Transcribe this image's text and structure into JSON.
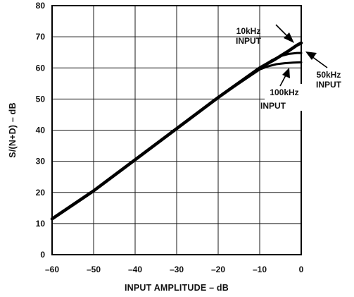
{
  "chart_data": {
    "type": "line",
    "title": "",
    "xlabel": "INPUT AMPLITUDE – dB",
    "ylabel": "S/(N+D) – dB",
    "xlim": [
      -60,
      0
    ],
    "ylim": [
      0,
      80
    ],
    "x_ticks": [
      "–60",
      "–50",
      "–40",
      "–30",
      "–20",
      "–10",
      "0"
    ],
    "y_ticks": [
      "0",
      "10",
      "20",
      "30",
      "40",
      "50",
      "60",
      "70",
      "80"
    ],
    "grid": true,
    "series": [
      {
        "name": "10kHz INPUT",
        "x": [
          -60,
          -50,
          -40,
          -30,
          -20,
          -10,
          -6,
          -3,
          -1,
          0
        ],
        "y": [
          11.5,
          20.5,
          30.5,
          40.5,
          50.5,
          60,
          63,
          65.5,
          67.3,
          68
        ]
      },
      {
        "name": "50kHz INPUT",
        "x": [
          -60,
          -50,
          -40,
          -30,
          -20,
          -10,
          -7,
          -5,
          -3,
          -1,
          0
        ],
        "y": [
          11.5,
          20.5,
          30.5,
          40.5,
          50.5,
          60,
          62.5,
          63.8,
          64.5,
          64.8,
          64.8
        ]
      },
      {
        "name": "100kHz INPUT",
        "x": [
          -60,
          -50,
          -40,
          -30,
          -20,
          -10,
          -8,
          -6,
          -4,
          -2,
          0
        ],
        "y": [
          11.5,
          20.5,
          30.5,
          40.5,
          50.5,
          59.5,
          60.5,
          61.2,
          61.5,
          61.7,
          61.8
        ]
      }
    ],
    "annotations": [
      {
        "text_lines": [
          "10kHz",
          "INPUT"
        ],
        "points_to": "10kHz INPUT"
      },
      {
        "text_lines": [
          "50kHz",
          "INPUT"
        ],
        "points_to": "50kHz INPUT"
      },
      {
        "text_lines": [
          "100kHz",
          "INPUT"
        ],
        "points_to": "100kHz INPUT"
      }
    ]
  }
}
